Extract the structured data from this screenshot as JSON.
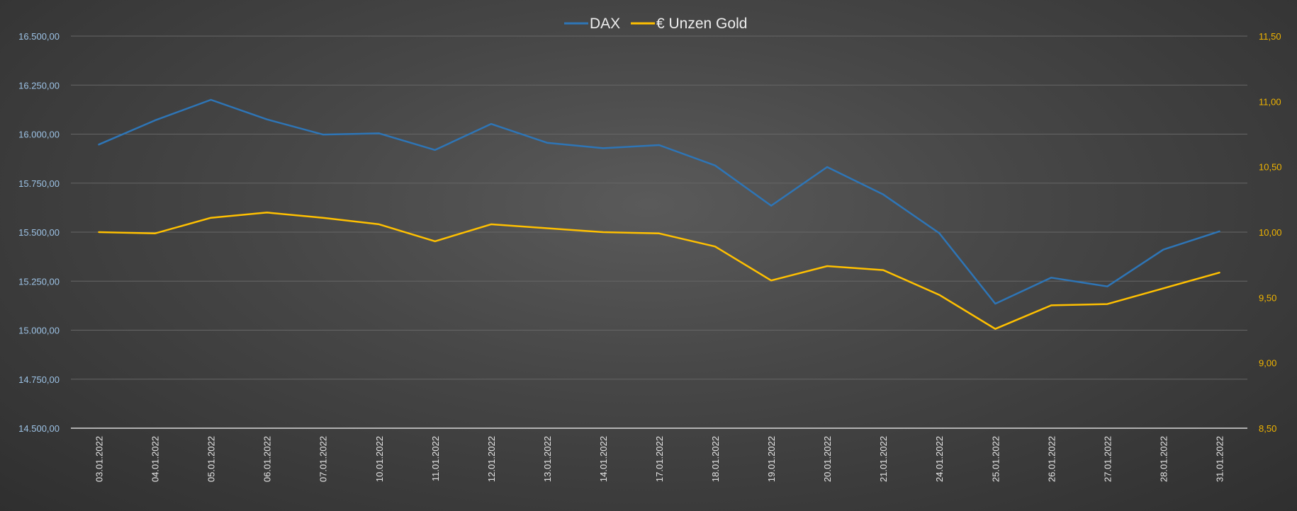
{
  "chart_data": {
    "type": "line",
    "title": "",
    "categories": [
      "03.01.2022",
      "04.01.2022",
      "05.01.2022",
      "06.01.2022",
      "07.01.2022",
      "10.01.2022",
      "11.01.2022",
      "12.01.2022",
      "13.01.2022",
      "14.01.2022",
      "17.01.2022",
      "18.01.2022",
      "19.01.2022",
      "20.01.2022",
      "21.01.2022",
      "24.01.2022",
      "25.01.2022",
      "26.01.2022",
      "27.01.2022",
      "28.01.2022",
      "31.01.2022"
    ],
    "series": [
      {
        "name": "DAX",
        "axis": "left",
        "color": "#2e75b6",
        "values": [
          15947,
          16070,
          16175,
          16075,
          15998,
          16004,
          15919,
          16052,
          15956,
          15928,
          15944,
          15840,
          15635,
          15832,
          15692,
          15495,
          15135,
          15268,
          15223,
          15411,
          15504
        ]
      },
      {
        "name": "€ Unzen Gold",
        "axis": "right",
        "color": "#ffc000",
        "values": [
          10.0,
          9.99,
          10.11,
          10.15,
          10.11,
          10.06,
          9.93,
          10.06,
          10.03,
          10.0,
          9.99,
          9.89,
          9.63,
          9.74,
          9.71,
          9.52,
          9.26,
          9.44,
          9.45,
          9.57,
          9.69
        ]
      }
    ],
    "y_left": {
      "lim": [
        14500,
        16500
      ],
      "ticks": [
        14500,
        14750,
        15000,
        15250,
        15500,
        15750,
        16000,
        16250,
        16500
      ],
      "tick_labels": [
        "14.500,00",
        "14.750,00",
        "15.000,00",
        "15.250,00",
        "15.500,00",
        "15.750,00",
        "16.000,00",
        "16.250,00",
        "16.500,00"
      ],
      "label": ""
    },
    "y_right": {
      "lim": [
        8.5,
        11.5
      ],
      "ticks": [
        8.5,
        9.0,
        9.5,
        10.0,
        10.5,
        11.0,
        11.5
      ],
      "tick_labels": [
        "8,50",
        "9,00",
        "9,50",
        "10,00",
        "10,50",
        "11,00",
        "11,50"
      ],
      "label": ""
    },
    "xlabel": "",
    "grid": true,
    "legend": "top-center",
    "colors": {
      "left_axis_text": "#9dc3e6",
      "right_axis_text": "#f0b400",
      "x_axis_text": "#e6e6e6",
      "grid": "#666666",
      "baseline": "#d9d9d9"
    }
  }
}
